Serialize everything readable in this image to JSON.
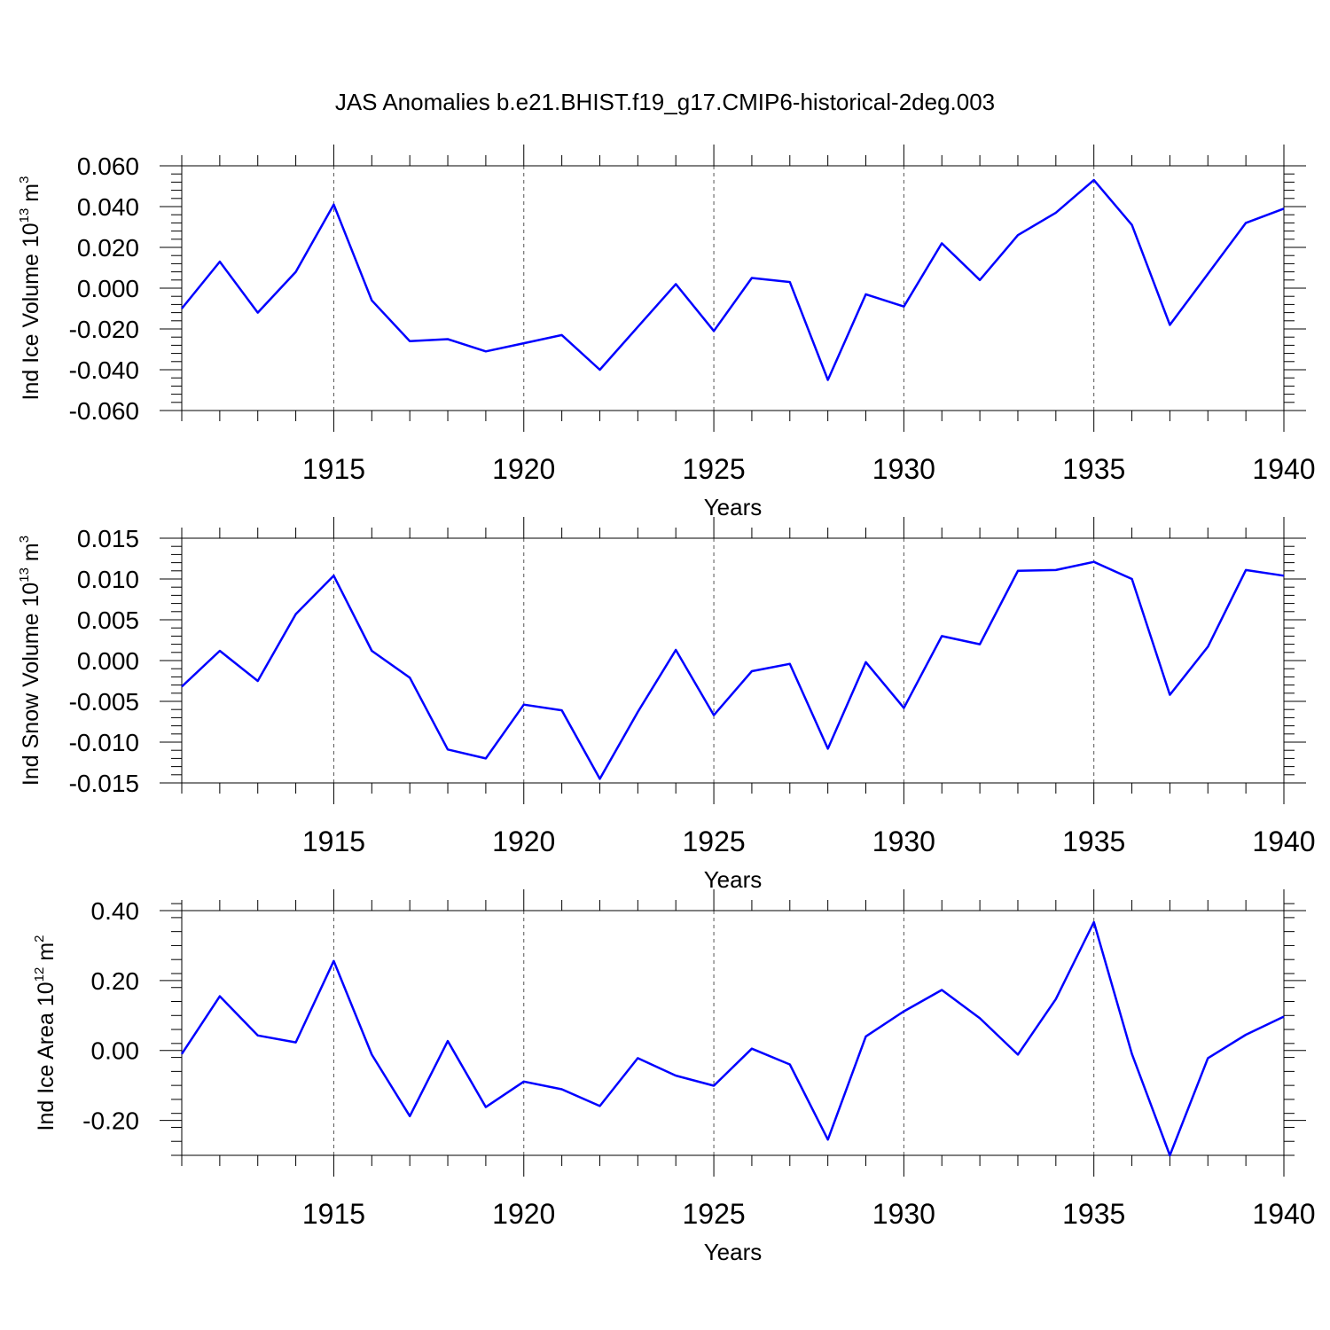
{
  "title": "JAS Anomalies b.e21.BHIST.f19_g17.CMIP6-historical-2deg.003",
  "chart_data": [
    {
      "type": "line",
      "title": "",
      "xlabel": "Years",
      "ylabel": "Ind Ice Volume 10",
      "ylabel_exp": "13",
      "ylabel_unit": "m",
      "ylabel_unit_exp": "3",
      "xlim": [
        1911,
        1940
      ],
      "ylim": [
        -0.06,
        0.06
      ],
      "yticks": [
        -0.06,
        -0.04,
        -0.02,
        0.0,
        0.02,
        0.04,
        0.06
      ],
      "ytick_labels": [
        "-0.060",
        "-0.040",
        "-0.020",
        "0.000",
        "0.020",
        "0.040",
        "0.060"
      ],
      "xticks": [
        1915,
        1920,
        1925,
        1930,
        1935,
        1940
      ],
      "xtick_labels": [
        "1915",
        "1920",
        "1925",
        "1930",
        "1935",
        "1940"
      ],
      "grid": "vertical dashed at major x ticks",
      "color": "#0000ff",
      "x": [
        1911,
        1912,
        1913,
        1914,
        1915,
        1916,
        1917,
        1918,
        1919,
        1920,
        1921,
        1922,
        1923,
        1924,
        1925,
        1926,
        1927,
        1928,
        1929,
        1930,
        1931,
        1932,
        1933,
        1934,
        1935,
        1936,
        1937,
        1938,
        1939,
        1940
      ],
      "values": [
        -0.01,
        0.013,
        -0.012,
        0.008,
        0.041,
        -0.006,
        -0.026,
        -0.025,
        -0.031,
        -0.027,
        -0.023,
        -0.04,
        -0.019,
        0.002,
        -0.021,
        0.005,
        0.003,
        -0.045,
        -0.003,
        -0.009,
        0.022,
        0.004,
        0.026,
        0.037,
        0.053,
        0.031,
        -0.018,
        0.007,
        0.032,
        0.039
      ]
    },
    {
      "type": "line",
      "title": "",
      "xlabel": "Years",
      "ylabel": "Ind Snow Volume 10",
      "ylabel_exp": "13",
      "ylabel_unit": "m",
      "ylabel_unit_exp": "3",
      "xlim": [
        1911,
        1940
      ],
      "ylim": [
        -0.015,
        0.015
      ],
      "yticks": [
        -0.015,
        -0.01,
        -0.005,
        0.0,
        0.005,
        0.01,
        0.015
      ],
      "ytick_labels": [
        "-0.015",
        "-0.010",
        "-0.005",
        "0.000",
        "0.005",
        "0.010",
        "0.015"
      ],
      "xticks": [
        1915,
        1920,
        1925,
        1930,
        1935,
        1940
      ],
      "xtick_labels": [
        "1915",
        "1920",
        "1925",
        "1930",
        "1935",
        "1940"
      ],
      "grid": "vertical dashed at major x ticks",
      "color": "#0000ff",
      "x": [
        1911,
        1912,
        1913,
        1914,
        1915,
        1916,
        1917,
        1918,
        1919,
        1920,
        1921,
        1922,
        1923,
        1924,
        1925,
        1926,
        1927,
        1928,
        1929,
        1930,
        1931,
        1932,
        1933,
        1934,
        1935,
        1936,
        1937,
        1938,
        1939,
        1940
      ],
      "values": [
        -0.0032,
        0.0012,
        -0.0025,
        0.0057,
        0.0104,
        0.0012,
        -0.0021,
        -0.0109,
        -0.012,
        -0.0054,
        -0.0061,
        -0.0145,
        -0.0063,
        0.0013,
        -0.0067,
        -0.0013,
        -0.0004,
        -0.0108,
        -0.0002,
        -0.0058,
        0.003,
        0.002,
        0.011,
        0.0111,
        0.0121,
        0.01,
        -0.0042,
        0.0017,
        0.0111,
        0.0104
      ]
    },
    {
      "type": "line",
      "title": "",
      "xlabel": "Years",
      "ylabel": "Ind Ice Area 10",
      "ylabel_exp": "12",
      "ylabel_unit": "m",
      "ylabel_unit_exp": "2",
      "xlim": [
        1911,
        1940
      ],
      "ylim": [
        -0.3,
        0.4
      ],
      "yticks": [
        -0.2,
        0.0,
        0.2,
        0.4
      ],
      "ytick_labels": [
        "-0.20",
        "0.00",
        "0.20",
        "0.40"
      ],
      "xticks": [
        1915,
        1920,
        1925,
        1930,
        1935,
        1940
      ],
      "xtick_labels": [
        "1915",
        "1920",
        "1925",
        "1930",
        "1935",
        "1940"
      ],
      "grid": "vertical dashed at major x ticks",
      "color": "#0000ff",
      "x": [
        1911,
        1912,
        1913,
        1914,
        1915,
        1916,
        1917,
        1918,
        1919,
        1920,
        1921,
        1922,
        1923,
        1924,
        1925,
        1926,
        1927,
        1928,
        1929,
        1930,
        1931,
        1932,
        1933,
        1934,
        1935,
        1936,
        1937,
        1938,
        1939,
        1940
      ],
      "values": [
        -0.01,
        0.155,
        0.043,
        0.023,
        0.256,
        -0.012,
        -0.188,
        0.027,
        -0.162,
        -0.089,
        -0.111,
        -0.159,
        -0.022,
        -0.072,
        -0.101,
        0.005,
        -0.04,
        -0.255,
        0.04,
        0.112,
        0.173,
        0.092,
        -0.012,
        0.147,
        0.367,
        -0.01,
        -0.3,
        -0.022,
        0.045,
        0.097
      ]
    }
  ]
}
